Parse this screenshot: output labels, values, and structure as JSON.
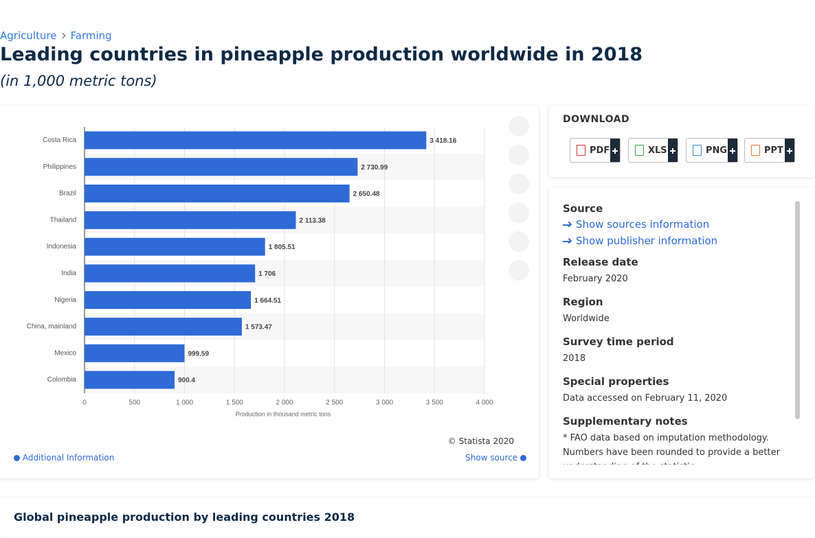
{
  "breadcrumb": [
    "Agriculture",
    "Farming"
  ],
  "page_title": "Leading countries in pineapple production worldwide in 2018",
  "page_subtitle": "(in 1,000 metric tons)",
  "chart_data": {
    "type": "bar",
    "orientation": "horizontal",
    "categories": [
      "Costa Rica",
      "Philippines",
      "Brazil",
      "Thailand",
      "Indonesia",
      "India",
      "Nigeria",
      "China, mainland",
      "Mexico",
      "Colombia"
    ],
    "values": [
      3418.16,
      2730.99,
      2650.48,
      2113.38,
      1805.51,
      1706,
      1664.51,
      1573.47,
      999.59,
      900.4
    ],
    "value_labels": [
      "3 418.16",
      "2 730.99",
      "2 650.48",
      "2 113.38",
      "1 805.51",
      "1 706",
      "1 664.51",
      "1 573.47",
      "999.59",
      "900.4"
    ],
    "color": "#2f6bd6",
    "xlabel": "Production in thousand metric tons",
    "xlim": [
      0,
      4000
    ],
    "xticks": [
      0,
      500,
      {
        "value": 1000,
        "label": "1 000"
      },
      {
        "value": 1500,
        "label": "1 500"
      },
      {
        "value": 2000,
        "label": "2 000"
      },
      {
        "value": 2500,
        "label": "2 500"
      },
      {
        "value": 3000,
        "label": "3 000"
      },
      {
        "value": 3500,
        "label": "3 500"
      },
      {
        "value": 4000,
        "label": "4 000"
      }
    ],
    "grid": true
  },
  "chart_footer": {
    "copyright": "© Statista 2020",
    "additional": "Additional Information",
    "show_source": "Show source"
  },
  "download": {
    "title": "DOWNLOAD",
    "buttons": [
      "PDF",
      "XLS",
      "PNG",
      "PPT"
    ]
  },
  "details": {
    "source_title": "Source",
    "source_links": [
      "Show sources information",
      "Show publisher information"
    ],
    "items": [
      {
        "label": "Release date",
        "value": "February 2020"
      },
      {
        "label": "Region",
        "value": "Worldwide"
      },
      {
        "label": "Survey time period",
        "value": "2018"
      },
      {
        "label": "Special properties",
        "value": "Data accessed on February 11, 2020"
      },
      {
        "label": "Supplementary notes",
        "value": "* FAO data based on imputation methodology. Numbers have been rounded to provide a better understanding of the statistic."
      }
    ]
  },
  "next_heading": "Global pineapple production by leading countries 2018"
}
